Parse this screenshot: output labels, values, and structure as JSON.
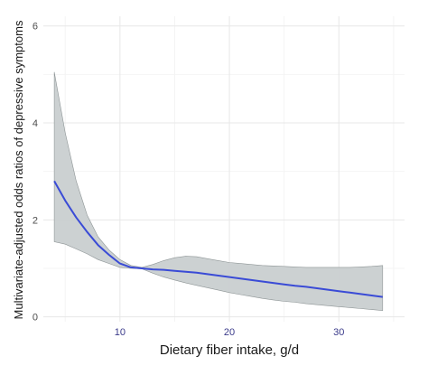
{
  "chart_data": {
    "type": "line",
    "xlabel": "Dietary fiber intake, g/d",
    "ylabel": "Multivariate-adjusted odds ratios of depressive symptoms",
    "xlim": [
      3,
      36
    ],
    "ylim": [
      -0.1,
      6.2
    ],
    "x_ticks": [
      10,
      20,
      30
    ],
    "y_ticks": [
      0,
      2,
      4,
      6
    ],
    "grid": true,
    "series": [
      {
        "x": [
          4,
          5,
          6,
          7,
          8,
          9,
          10,
          11,
          12,
          13,
          14,
          15,
          16,
          17,
          18,
          19,
          20,
          21,
          22,
          23,
          24,
          25,
          26,
          27,
          28,
          29,
          30,
          31,
          32,
          33,
          34
        ],
        "y": [
          2.8,
          2.4,
          2.05,
          1.75,
          1.48,
          1.28,
          1.1,
          1.02,
          1.0,
          0.98,
          0.97,
          0.95,
          0.93,
          0.91,
          0.88,
          0.85,
          0.82,
          0.79,
          0.76,
          0.73,
          0.7,
          0.67,
          0.64,
          0.62,
          0.59,
          0.56,
          0.53,
          0.5,
          0.47,
          0.44,
          0.41
        ],
        "lower": [
          1.55,
          1.5,
          1.4,
          1.3,
          1.18,
          1.1,
          1.02,
          1.0,
          0.99,
          0.9,
          0.82,
          0.76,
          0.7,
          0.65,
          0.6,
          0.55,
          0.5,
          0.46,
          0.42,
          0.38,
          0.35,
          0.32,
          0.3,
          0.27,
          0.25,
          0.23,
          0.21,
          0.19,
          0.17,
          0.15,
          0.13
        ],
        "upper": [
          5.05,
          3.8,
          2.8,
          2.1,
          1.65,
          1.38,
          1.18,
          1.06,
          1.02,
          1.08,
          1.16,
          1.22,
          1.25,
          1.24,
          1.2,
          1.16,
          1.12,
          1.1,
          1.08,
          1.06,
          1.05,
          1.04,
          1.03,
          1.02,
          1.02,
          1.02,
          1.02,
          1.02,
          1.03,
          1.04,
          1.06
        ]
      }
    ],
    "colors": {
      "line": "#3a4bd6",
      "band": "#c9cfd0",
      "band_edge": "#8e9596",
      "grid_major": "#e7e7e7",
      "grid_minor": "#f4f4f4"
    }
  }
}
